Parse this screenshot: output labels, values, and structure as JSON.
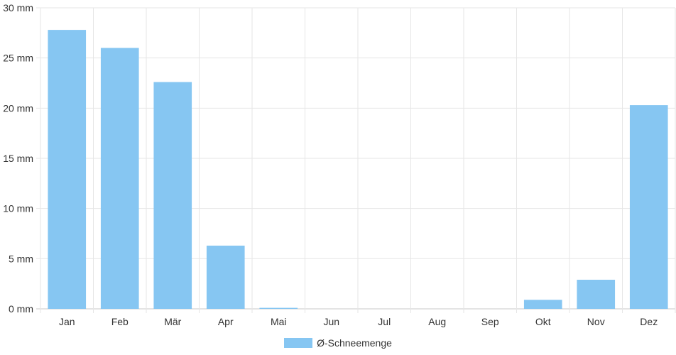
{
  "chart_data": {
    "type": "bar",
    "categories": [
      "Jan",
      "Feb",
      "Mär",
      "Apr",
      "Mai",
      "Jun",
      "Jul",
      "Aug",
      "Sep",
      "Okt",
      "Nov",
      "Dez"
    ],
    "series": [
      {
        "name": "Ø-Schneemenge",
        "values": [
          27.8,
          26.0,
          22.6,
          6.3,
          0.1,
          0,
          0,
          0,
          0,
          0.9,
          2.9,
          20.3
        ],
        "color": "#86c6f2"
      }
    ],
    "yticks": [
      "0 mm",
      "5 mm",
      "10 mm",
      "15 mm",
      "20 mm",
      "25 mm",
      "30 mm"
    ],
    "ylim": [
      0,
      30
    ],
    "grid": true,
    "legend_position": "bottom-center",
    "title": "",
    "xlabel": "",
    "ylabel": ""
  }
}
